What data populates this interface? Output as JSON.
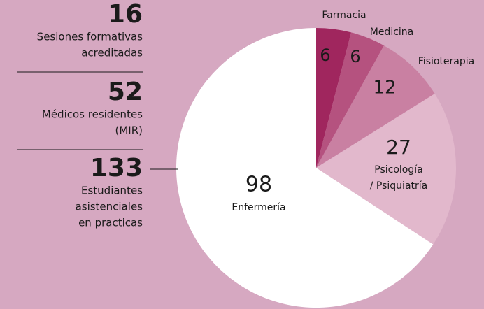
{
  "chart_data": {
    "type": "pie",
    "categories": [
      "Farmacia",
      "Medicina",
      "Fisioterapia",
      [
        "Psicología",
        "/ Psiquiatría"
      ],
      "Enfermería"
    ],
    "values": [
      6,
      6,
      12,
      27,
      98
    ],
    "colors": [
      "#a0265e",
      "#b5527f",
      "#c980a2",
      "#e2b8cc",
      "#ffffff"
    ]
  },
  "stats": [
    {
      "value": 16,
      "label": [
        "Sesiones formativas",
        "acreditadas"
      ]
    },
    {
      "value": 52,
      "label": [
        "Médicos residentes",
        "(MIR)"
      ]
    },
    {
      "value": 133,
      "label": [
        "Estudiantes",
        "asistenciales",
        "en practicas"
      ]
    }
  ]
}
